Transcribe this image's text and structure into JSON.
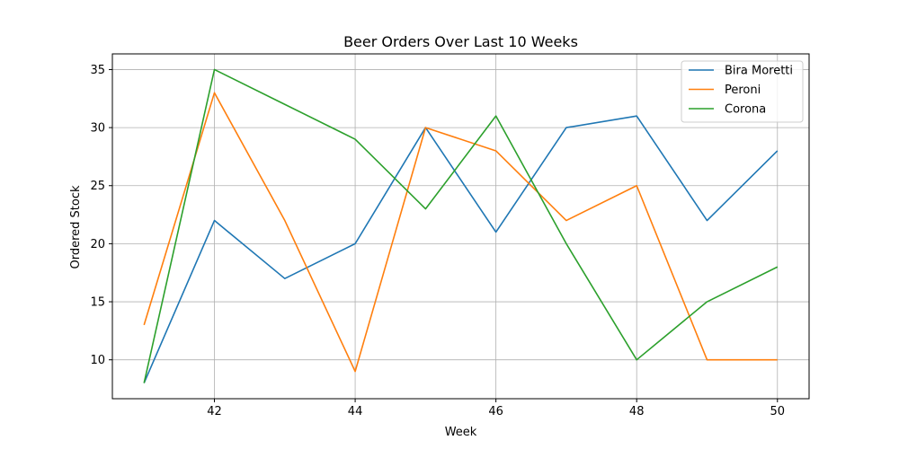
{
  "chart_data": {
    "type": "line",
    "title": "Beer Orders Over Last 10 Weeks",
    "xlabel": "Week",
    "ylabel": "Ordered Stock",
    "x": [
      41,
      42,
      43,
      44,
      45,
      46,
      47,
      48,
      49,
      50
    ],
    "xlim": [
      40.55,
      50.45
    ],
    "ylim": [
      6.65,
      36.35
    ],
    "xticks": [
      42,
      44,
      46,
      48,
      50
    ],
    "yticks": [
      10,
      15,
      20,
      25,
      30,
      35
    ],
    "grid": true,
    "legend_position": "top-right",
    "series": [
      {
        "name": "Bira Moretti",
        "color": "#1f77b4",
        "values": [
          8,
          22,
          17,
          20,
          30,
          21,
          30,
          31,
          22,
          28
        ]
      },
      {
        "name": "Peroni",
        "color": "#ff7f0e",
        "values": [
          13,
          33,
          22,
          9,
          30,
          28,
          22,
          25,
          10,
          10
        ]
      },
      {
        "name": "Corona",
        "color": "#2ca02c",
        "values": [
          8,
          35,
          32,
          29,
          23,
          31,
          20,
          10,
          15,
          18
        ]
      }
    ]
  }
}
